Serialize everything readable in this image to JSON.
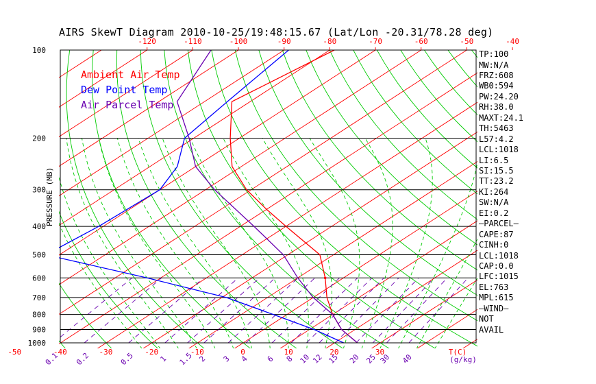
{
  "chart_data": {
    "type": "skew-t",
    "title": "AIRS SkewT Diagram 2010-10-25/19:48:15.67 (Lat/Lon -20.31/78.28 deg)",
    "ylabel": "PRESSURE (MB)",
    "pressure_ticks": [
      100,
      200,
      300,
      400,
      500,
      600,
      700,
      800,
      900,
      1000
    ],
    "top_temp_ticks": [
      -120,
      -110,
      -100,
      -90,
      -80,
      -70,
      -60,
      -50,
      -40
    ],
    "bottom_temp_ticks": [
      -50,
      -40,
      -30,
      -20,
      -10,
      0,
      10,
      20,
      30
    ],
    "bottom_temp_unit": "T(C)",
    "mixing_ratio_ticks": [
      "0.1",
      "0.2",
      "0.5",
      "1",
      "1.5",
      "2",
      "3",
      "4",
      "6",
      "8",
      "10",
      "12",
      "15",
      "20",
      "25",
      "30",
      "40"
    ],
    "mixing_ratio_unit": "(g/kg)",
    "legend": [
      {
        "name": "Ambient Air Temp",
        "color": "#ff0000"
      },
      {
        "name": "Dew Point Temp",
        "color": "#0000ff"
      },
      {
        "name": "Air Parcel Temp",
        "color": "#6a00b0"
      }
    ],
    "series": [
      {
        "name": "Ambient Air Temp",
        "color": "#ff0000",
        "points": [
          [
            100,
            -79
          ],
          [
            150,
            -84
          ],
          [
            200,
            -72
          ],
          [
            250,
            -62
          ],
          [
            300,
            -51
          ],
          [
            350,
            -40
          ],
          [
            400,
            -30
          ],
          [
            500,
            -13
          ],
          [
            600,
            -4
          ],
          [
            700,
            3
          ],
          [
            800,
            10
          ],
          [
            900,
            17
          ],
          [
            1000,
            25
          ]
        ]
      },
      {
        "name": "Dew Point Temp",
        "color": "#0000ff",
        "points": [
          [
            100,
            -89
          ],
          [
            150,
            -85
          ],
          [
            200,
            -82
          ],
          [
            250,
            -74
          ],
          [
            300,
            -70
          ],
          [
            400,
            -71
          ],
          [
            500,
            -73
          ],
          [
            600,
            -43
          ],
          [
            700,
            -19
          ],
          [
            800,
            -3
          ],
          [
            900,
            11
          ],
          [
            1000,
            22
          ]
        ]
      },
      {
        "name": "Air Parcel Temp",
        "color": "#6a00b0",
        "points": [
          [
            100,
            -106
          ],
          [
            150,
            -96
          ],
          [
            200,
            -81
          ],
          [
            250,
            -70
          ],
          [
            300,
            -58
          ],
          [
            400,
            -37
          ],
          [
            500,
            -21
          ],
          [
            600,
            -10
          ],
          [
            700,
            0
          ],
          [
            800,
            10
          ],
          [
            900,
            17
          ],
          [
            1000,
            25
          ]
        ]
      }
    ],
    "indices": [
      "TP:100",
      "MW:N/A",
      "FRZ:608",
      "WB0:594",
      "PW:24.20",
      "RH:38.0",
      "MAXT:24.1",
      "TH:5463",
      "L57:4.2",
      "LCL:1018",
      "LI:6.5",
      "SI:15.5",
      "TT:23.2",
      "KI:264",
      "SW:N/A",
      "EI:0.2",
      "—PARCEL—",
      "CAPE:87",
      "CINH:0",
      "LCL:1018",
      "CAP:0.0",
      "LFC:1015",
      "EL:763",
      "MPL:615",
      "—WIND—",
      "NOT",
      "AVAIL"
    ],
    "grid": true
  },
  "colors": {
    "isotherm": "#ff0000",
    "dry_adiabat": "#00cc00",
    "moist_adiabat": "#00cc00",
    "mixing_ratio": "#6a00b0",
    "isobar": "#000000",
    "bottom_tick": "#ff0000",
    "top_tick": "#ff0000"
  }
}
